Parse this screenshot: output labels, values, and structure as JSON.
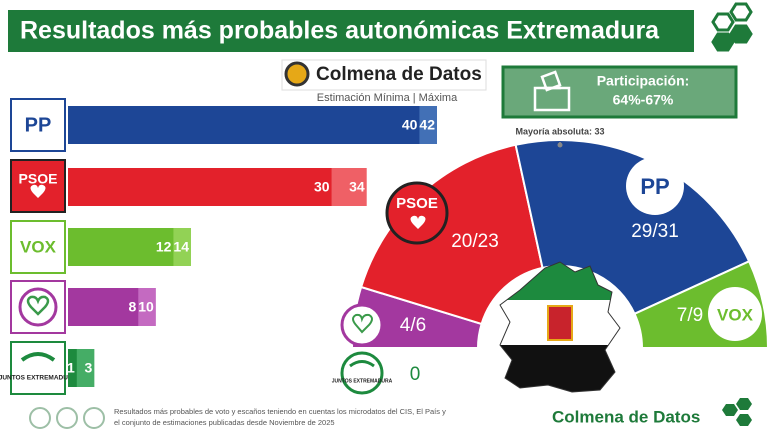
{
  "title": "Resultados más probables autonómicas Extremadura",
  "brand": "Colmena de Datos",
  "subtitle": "Estimación Mínima | Máxima",
  "participation": {
    "label": "Participación:",
    "value": "64%-67%"
  },
  "footer": {
    "line1": "Resultados más probables de voto y escaños teniendo en cuentas los microdatos del CIS, El País y",
    "line2": "el conjunto de estimaciones publicadas desde Noviembre de 2025",
    "brand": "Colmena de Datos"
  },
  "chart_data": [
    {
      "type": "bar",
      "orientation": "horizontal",
      "categories": [
        "PP",
        "PSOE",
        "VOX",
        null,
        "JUNTOS EXTREMADURA"
      ],
      "series": [
        {
          "colors": [
            "#1d4696",
            "#e3212b",
            "#6cbd2e",
            "#a3389f",
            "#1d8a3e"
          ],
          "values": [
            40,
            30,
            12,
            8,
            1
          ]
        },
        {
          "colors": [
            "#4270b6",
            "#ef6066",
            "#92d255",
            "#c46ac1",
            "#45ad66"
          ],
          "values": [
            42,
            34,
            14,
            10,
            3
          ]
        }
      ]
    },
    {
      "type": "hemicycle",
      "seat_labels": [
        "29/31",
        "20/23",
        "7/9",
        "4/6",
        "0"
      ],
      "majority_label": "Mayoría absoluta: 33"
    }
  ]
}
